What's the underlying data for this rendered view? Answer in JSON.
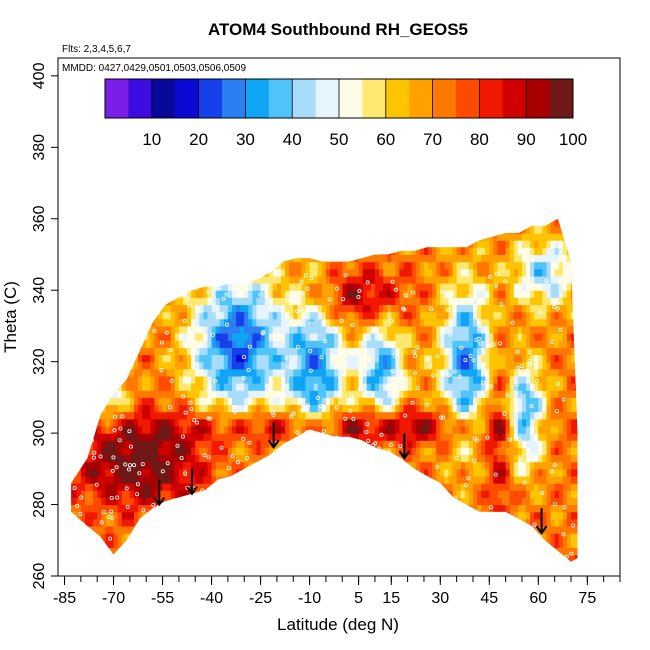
{
  "chart_data": {
    "type": "heatmap",
    "title": "ATOM4 Southbound RH_GEOS5",
    "flights_note": "Flts: 2,3,4,5,6,7",
    "dates_note": "MMDD: 0427,0429,0501,0503,0506,0509",
    "xlabel": "Latitude (deg N)",
    "ylabel": "Theta (C)",
    "xlim": [
      -87,
      85
    ],
    "ylim": [
      260,
      405
    ],
    "x_ticks": [
      -85,
      -70,
      -55,
      -40,
      -25,
      -10,
      5,
      15,
      30,
      45,
      60,
      75
    ],
    "y_ticks": [
      260,
      280,
      300,
      320,
      340,
      360,
      380,
      400
    ],
    "colorbar": {
      "range": [
        0,
        100
      ],
      "ticks": [
        10,
        20,
        30,
        40,
        50,
        60,
        70,
        80,
        90,
        100
      ],
      "colors": [
        "#7a1ee8",
        "#3c0ce0",
        "#08089a",
        "#0a0ad4",
        "#1540ea",
        "#2a80f2",
        "#10a4f4",
        "#50c4f8",
        "#a8dcfb",
        "#e6f4fe",
        "#fffde8",
        "#ffe870",
        "#ffc400",
        "#ffa200",
        "#ff7800",
        "#ff4a00",
        "#f01800",
        "#d00000",
        "#a80000",
        "#701818"
      ]
    },
    "grid": false,
    "envelope": {
      "lat": [
        -83,
        -78,
        -74,
        -70,
        -66,
        -62,
        -58,
        -54,
        -50,
        -46,
        -42,
        -38,
        -34,
        -30,
        -26,
        -22,
        -18,
        -14,
        -10,
        -6,
        -2,
        2,
        6,
        10,
        14,
        18,
        22,
        26,
        30,
        34,
        38,
        42,
        46,
        50,
        54,
        58,
        62,
        66,
        70,
        72
      ],
      "bottom": [
        278,
        274,
        271,
        266,
        270,
        276,
        279,
        281,
        282,
        283,
        284,
        287,
        288,
        290,
        292,
        294,
        297,
        299,
        301,
        300,
        299,
        299,
        298,
        296,
        295,
        293,
        290,
        288,
        286,
        282,
        280,
        278,
        278,
        278,
        276,
        274,
        270,
        267,
        264,
        265
      ],
      "top": [
        286,
        293,
        305,
        311,
        315,
        323,
        331,
        336,
        338,
        340,
        341,
        341,
        342,
        342,
        343,
        345,
        348,
        349,
        349,
        348,
        348,
        348,
        349,
        350,
        350,
        351,
        351,
        352,
        352,
        352,
        352,
        354,
        355,
        356,
        356,
        358,
        358,
        360,
        348,
        300
      ]
    },
    "arrows": [
      {
        "lat": -56,
        "theta_top": 287,
        "theta_bottom": 280
      },
      {
        "lat": -46,
        "theta_top": 290,
        "theta_bottom": 283
      },
      {
        "lat": -21,
        "theta_top": 303,
        "theta_bottom": 296
      },
      {
        "lat": 19,
        "theta_top": 300,
        "theta_bottom": 293
      },
      {
        "lat": 61,
        "theta_top": 279,
        "theta_bottom": 272
      }
    ]
  }
}
